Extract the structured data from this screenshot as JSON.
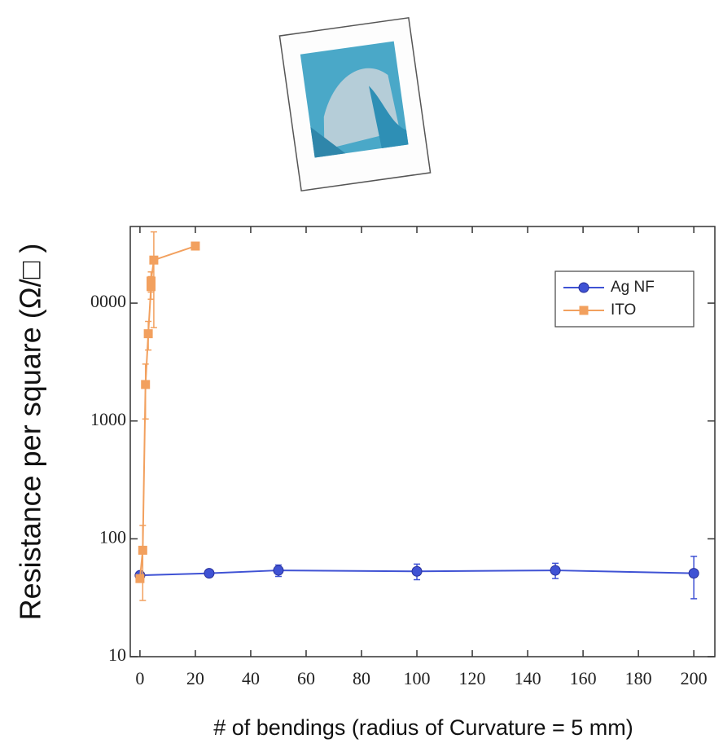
{
  "chart_data": {
    "type": "line",
    "x_label": "# of bendings (radius of Curvature = 5 mm)",
    "y_label": "Resistance per square (Ω/□ )",
    "xlim": [
      -3.5,
      207.6
    ],
    "ylim": [
      10,
      44700
    ],
    "ylog": true,
    "xticks": [
      0,
      20,
      40,
      60,
      80,
      100,
      120,
      140,
      160,
      180,
      200
    ],
    "yticks": [
      10,
      100,
      1000,
      {
        "value": 10000,
        "label": "0000"
      }
    ],
    "legend": "upper right",
    "series": [
      {
        "name": "Ag NF",
        "color": "#3f52d4",
        "marker": "circle",
        "x": [
          0,
          25,
          50,
          100,
          150,
          200
        ],
        "values": [
          49,
          51,
          54,
          53,
          54,
          51
        ],
        "errors": [
          3,
          3,
          6,
          8,
          8,
          20
        ]
      },
      {
        "name": "ITO",
        "color": "#f2a05e",
        "marker": "square",
        "x": [
          0,
          1,
          2,
          3,
          4,
          4,
          5,
          20
        ],
        "values": [
          46,
          80,
          2040,
          5500,
          13800,
          15400,
          23200,
          30500
        ],
        "errors": [
          3,
          50,
          1000,
          1500,
          3000,
          3000,
          17000,
          1000
        ]
      }
    ]
  }
}
